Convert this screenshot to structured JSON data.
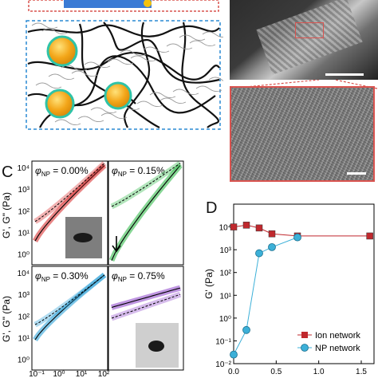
{
  "panels": {
    "C": "C",
    "D": "D"
  },
  "rheology": {
    "ylabel_top": "G', G\" (Pa)",
    "ylabel_bottom": "G', G\" (Pa)",
    "y_ticks": [
      "10⁴",
      "10³",
      "10²",
      "10¹",
      "10⁰"
    ],
    "x_ticks": [
      "10⁻¹",
      "10⁰",
      "10¹",
      "10²"
    ],
    "phi_symbol": "φ",
    "phi_sub": "NP",
    "subpanels": [
      {
        "label": " = 0.00%",
        "color": "#d62020"
      },
      {
        "label": " = 0.15%",
        "color": "#22b43c"
      },
      {
        "label": " = 0.30%",
        "color": "#1e9ad6"
      },
      {
        "label": " = 0.75%",
        "color": "#8a3fc8"
      }
    ]
  },
  "chart_data": [
    {
      "type": "scatter",
      "title": "",
      "xlabel": "",
      "ylabel": "G' (Pa)",
      "yscale": "log",
      "ylim": [
        0.01,
        100000
      ],
      "xlim": [
        0.0,
        1.65
      ],
      "x_ticks": [
        "0.0",
        "0.5",
        "1.0",
        "1.5"
      ],
      "y_ticks": [
        "10⁻²",
        "10⁻¹",
        "10⁰",
        "10¹",
        "10²",
        "10³",
        "10⁴"
      ],
      "legend_position": "bottom-right",
      "series": [
        {
          "name": "Ion network",
          "color": "#c0282d",
          "marker": "square",
          "x": [
            0.0,
            0.15,
            0.3,
            0.45,
            0.75,
            1.6
          ],
          "y": [
            10000,
            12000,
            9000,
            5000,
            4000,
            4000
          ]
        },
        {
          "name": "NP network",
          "color": "#3cb0d8",
          "marker": "circle",
          "x": [
            0.0,
            0.15,
            0.3,
            0.45,
            0.75,
            1.6
          ],
          "y": [
            0.025,
            0.3,
            700,
            1300,
            3500,
            null
          ]
        }
      ]
    }
  ]
}
